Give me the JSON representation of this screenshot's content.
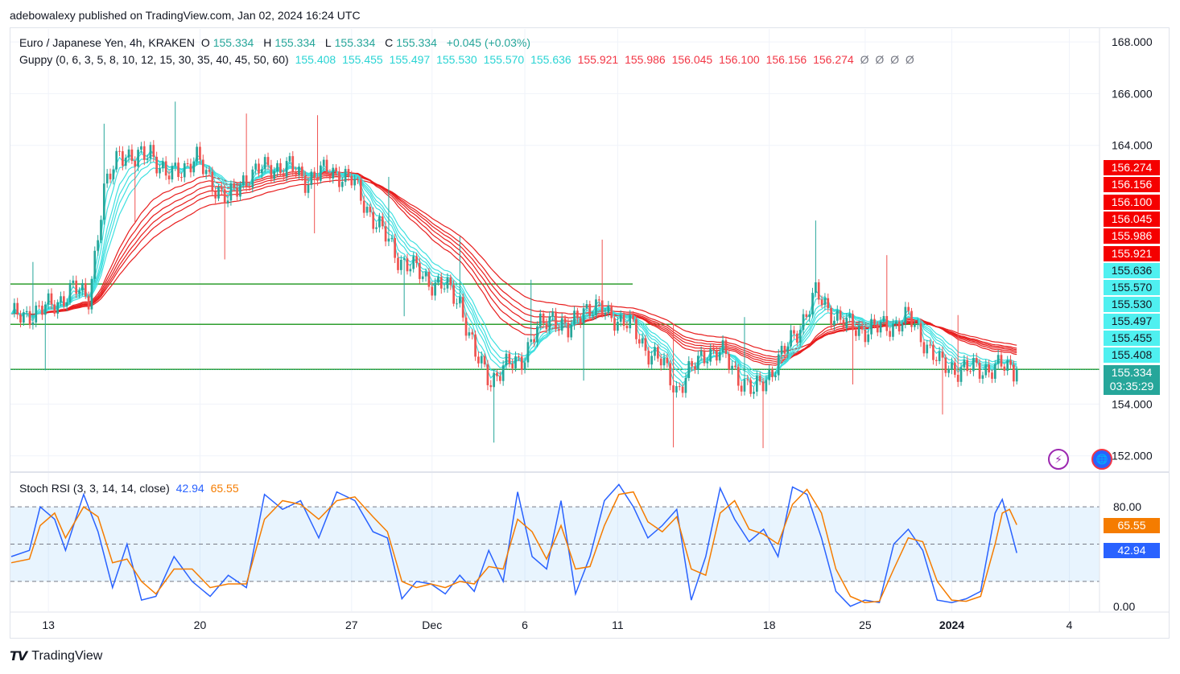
{
  "caption": "adebowalexy published on TradingView.com, Jan 02, 2024 16:24 UTC",
  "footer": "TradingView",
  "legend": {
    "symbol": "Euro / Japanese Yen, 4h, KRAKEN",
    "o_label": "O",
    "o": "155.334",
    "h_label": "H",
    "h": "155.334",
    "l_label": "L",
    "l": "155.334",
    "c_label": "C",
    "c": "155.334",
    "change": "+0.045 (+0.03%)",
    "guppy_title": "Guppy (0, 6, 3, 5, 8, 10, 12, 15, 30, 35, 40, 45, 50, 60)",
    "guppy_fast": [
      "155.408",
      "155.455",
      "155.497",
      "155.530",
      "155.570",
      "155.636"
    ],
    "guppy_slow": [
      "155.921",
      "155.986",
      "156.045",
      "156.100",
      "156.156",
      "156.274"
    ],
    "guppy_empty": [
      "Ø",
      "Ø",
      "Ø",
      "Ø"
    ],
    "rsi_title": "Stoch RSI (3, 3, 14, 14, close)",
    "rsi_k": "42.94",
    "rsi_d": "65.55"
  },
  "colors": {
    "up": "#26a69a",
    "down": "#ef5350",
    "fast": "#3fe0e0",
    "slow": "#e81e1e",
    "rsi_k": "#2962ff",
    "rsi_d": "#f57c00",
    "hline": "#2e9e2e"
  },
  "chart_data": [
    {
      "type": "candlestick",
      "title": "Euro / Japanese Yen, 4h, KRAKEN",
      "ylim": [
        151.4,
        168.5
      ],
      "y_ticks": [
        "168.000",
        "166.000",
        "164.000",
        "154.000",
        "152.000"
      ],
      "x_ticks": [
        "13",
        "20",
        "27",
        "Dec",
        "6",
        "11",
        "18",
        "25",
        "2024",
        "4"
      ],
      "x_tick_index": [
        12,
        61,
        110,
        136,
        166,
        196,
        245,
        276,
        304,
        342
      ],
      "n_bars": 352,
      "horizontal_lines": [
        155.34,
        157.08,
        158.64
      ],
      "close_path": [
        [
          0,
          157.3
        ],
        [
          5,
          157.5
        ],
        [
          10,
          157.6
        ],
        [
          15,
          158.0
        ],
        [
          20,
          158.4
        ],
        [
          25,
          158.2
        ],
        [
          30,
          162.1
        ],
        [
          35,
          163.9
        ],
        [
          40,
          163.3
        ],
        [
          45,
          163.9
        ],
        [
          50,
          162.7
        ],
        [
          55,
          163.2
        ],
        [
          60,
          163.4
        ],
        [
          65,
          162.6
        ],
        [
          70,
          161.8
        ],
        [
          75,
          162.7
        ],
        [
          80,
          163.0
        ],
        [
          85,
          163.2
        ],
        [
          90,
          163.1
        ],
        [
          95,
          162.7
        ],
        [
          100,
          162.9
        ],
        [
          105,
          163.0
        ],
        [
          110,
          162.6
        ],
        [
          115,
          161.6
        ],
        [
          120,
          160.6
        ],
        [
          125,
          159.7
        ],
        [
          130,
          159.2
        ],
        [
          135,
          158.8
        ],
        [
          140,
          158.5
        ],
        [
          145,
          158.0
        ],
        [
          150,
          155.8
        ],
        [
          155,
          155.0
        ],
        [
          160,
          155.4
        ],
        [
          165,
          155.8
        ],
        [
          170,
          156.8
        ],
        [
          175,
          157.5
        ],
        [
          180,
          156.7
        ],
        [
          185,
          157.8
        ],
        [
          190,
          157.6
        ],
        [
          195,
          157.4
        ],
        [
          200,
          157.0
        ],
        [
          205,
          156.2
        ],
        [
          210,
          155.6
        ],
        [
          215,
          154.6
        ],
        [
          220,
          155.3
        ],
        [
          225,
          156.1
        ],
        [
          230,
          155.9
        ],
        [
          235,
          155.1
        ],
        [
          240,
          154.4
        ],
        [
          245,
          155.2
        ],
        [
          250,
          156.0
        ],
        [
          255,
          157.1
        ],
        [
          260,
          158.2
        ],
        [
          265,
          157.6
        ],
        [
          270,
          157.0
        ],
        [
          275,
          156.9
        ],
        [
          280,
          156.9
        ],
        [
          285,
          157.1
        ],
        [
          290,
          157.3
        ],
        [
          295,
          156.5
        ],
        [
          300,
          155.5
        ],
        [
          305,
          155.4
        ],
        [
          310,
          155.3
        ],
        [
          315,
          155.4
        ],
        [
          320,
          155.4
        ],
        [
          325,
          155.334
        ]
      ],
      "guppy_fast_last": [
        155.408,
        155.455,
        155.497,
        155.53,
        155.57,
        155.636
      ],
      "guppy_slow_last": [
        155.921,
        155.986,
        156.045,
        156.1,
        156.156,
        156.274
      ],
      "last_price": "155.334",
      "countdown": "03:35:29"
    },
    {
      "type": "line",
      "title": "Stoch RSI (3, 3, 14, 14, close)",
      "ylim": [
        -4,
        106
      ],
      "y_ticks": [
        "80.00",
        "0.00"
      ],
      "band": [
        20,
        80
      ],
      "mid": 50,
      "series": [
        {
          "name": "K",
          "last": 42.94,
          "path": [
            [
              0,
              40
            ],
            [
              5,
              45
            ],
            [
              8,
              80
            ],
            [
              12,
              70
            ],
            [
              15,
              45
            ],
            [
              20,
              90
            ],
            [
              24,
              60
            ],
            [
              28,
              15
            ],
            [
              32,
              50
            ],
            [
              36,
              5
            ],
            [
              40,
              8
            ],
            [
              45,
              40
            ],
            [
              50,
              20
            ],
            [
              55,
              8
            ],
            [
              60,
              25
            ],
            [
              65,
              15
            ],
            [
              70,
              90
            ],
            [
              75,
              78
            ],
            [
              80,
              85
            ],
            [
              85,
              55
            ],
            [
              90,
              92
            ],
            [
              95,
              85
            ],
            [
              100,
              60
            ],
            [
              104,
              55
            ],
            [
              108,
              6
            ],
            [
              112,
              20
            ],
            [
              116,
              18
            ],
            [
              120,
              10
            ],
            [
              124,
              25
            ],
            [
              128,
              12
            ],
            [
              132,
              45
            ],
            [
              136,
              20
            ],
            [
              140,
              92
            ],
            [
              144,
              40
            ],
            [
              148,
              30
            ],
            [
              152,
              85
            ],
            [
              156,
              10
            ],
            [
              160,
              40
            ],
            [
              164,
              85
            ],
            [
              168,
              98
            ],
            [
              172,
              80
            ],
            [
              176,
              55
            ],
            [
              180,
              65
            ],
            [
              184,
              78
            ],
            [
              188,
              5
            ],
            [
              192,
              40
            ],
            [
              196,
              95
            ],
            [
              200,
              70
            ],
            [
              204,
              52
            ],
            [
              208,
              62
            ],
            [
              212,
              40
            ],
            [
              216,
              96
            ],
            [
              220,
              90
            ],
            [
              224,
              55
            ],
            [
              228,
              12
            ],
            [
              232,
              0
            ],
            [
              236,
              5
            ],
            [
              240,
              3
            ],
            [
              244,
              50
            ],
            [
              248,
              62
            ],
            [
              252,
              45
            ],
            [
              256,
              5
            ],
            [
              260,
              3
            ],
            [
              264,
              6
            ],
            [
              268,
              12
            ],
            [
              272,
              75
            ],
            [
              274,
              86
            ],
            [
              276,
              65
            ],
            [
              278,
              42.94
            ]
          ]
        },
        {
          "name": "D",
          "last": 65.55,
          "path": [
            [
              0,
              35
            ],
            [
              5,
              38
            ],
            [
              8,
              65
            ],
            [
              12,
              75
            ],
            [
              15,
              55
            ],
            [
              20,
              80
            ],
            [
              24,
              72
            ],
            [
              28,
              35
            ],
            [
              32,
              38
            ],
            [
              36,
              20
            ],
            [
              40,
              10
            ],
            [
              45,
              30
            ],
            [
              50,
              30
            ],
            [
              55,
              15
            ],
            [
              60,
              18
            ],
            [
              65,
              18
            ],
            [
              70,
              70
            ],
            [
              75,
              85
            ],
            [
              80,
              82
            ],
            [
              85,
              70
            ],
            [
              90,
              85
            ],
            [
              95,
              88
            ],
            [
              100,
              72
            ],
            [
              104,
              60
            ],
            [
              108,
              20
            ],
            [
              112,
              15
            ],
            [
              116,
              18
            ],
            [
              120,
              15
            ],
            [
              124,
              20
            ],
            [
              128,
              18
            ],
            [
              132,
              32
            ],
            [
              136,
              30
            ],
            [
              140,
              70
            ],
            [
              144,
              60
            ],
            [
              148,
              38
            ],
            [
              152,
              65
            ],
            [
              156,
              30
            ],
            [
              160,
              32
            ],
            [
              164,
              65
            ],
            [
              168,
              90
            ],
            [
              172,
              92
            ],
            [
              176,
              68
            ],
            [
              180,
              60
            ],
            [
              184,
              72
            ],
            [
              188,
              30
            ],
            [
              192,
              25
            ],
            [
              196,
              75
            ],
            [
              200,
              85
            ],
            [
              204,
              62
            ],
            [
              208,
              58
            ],
            [
              212,
              50
            ],
            [
              216,
              82
            ],
            [
              220,
              94
            ],
            [
              224,
              75
            ],
            [
              228,
              30
            ],
            [
              232,
              8
            ],
            [
              236,
              3
            ],
            [
              240,
              4
            ],
            [
              244,
              30
            ],
            [
              248,
              55
            ],
            [
              252,
              52
            ],
            [
              256,
              20
            ],
            [
              260,
              5
            ],
            [
              264,
              4
            ],
            [
              268,
              8
            ],
            [
              272,
              50
            ],
            [
              274,
              75
            ],
            [
              276,
              78
            ],
            [
              278,
              65.55
            ]
          ]
        }
      ]
    }
  ]
}
